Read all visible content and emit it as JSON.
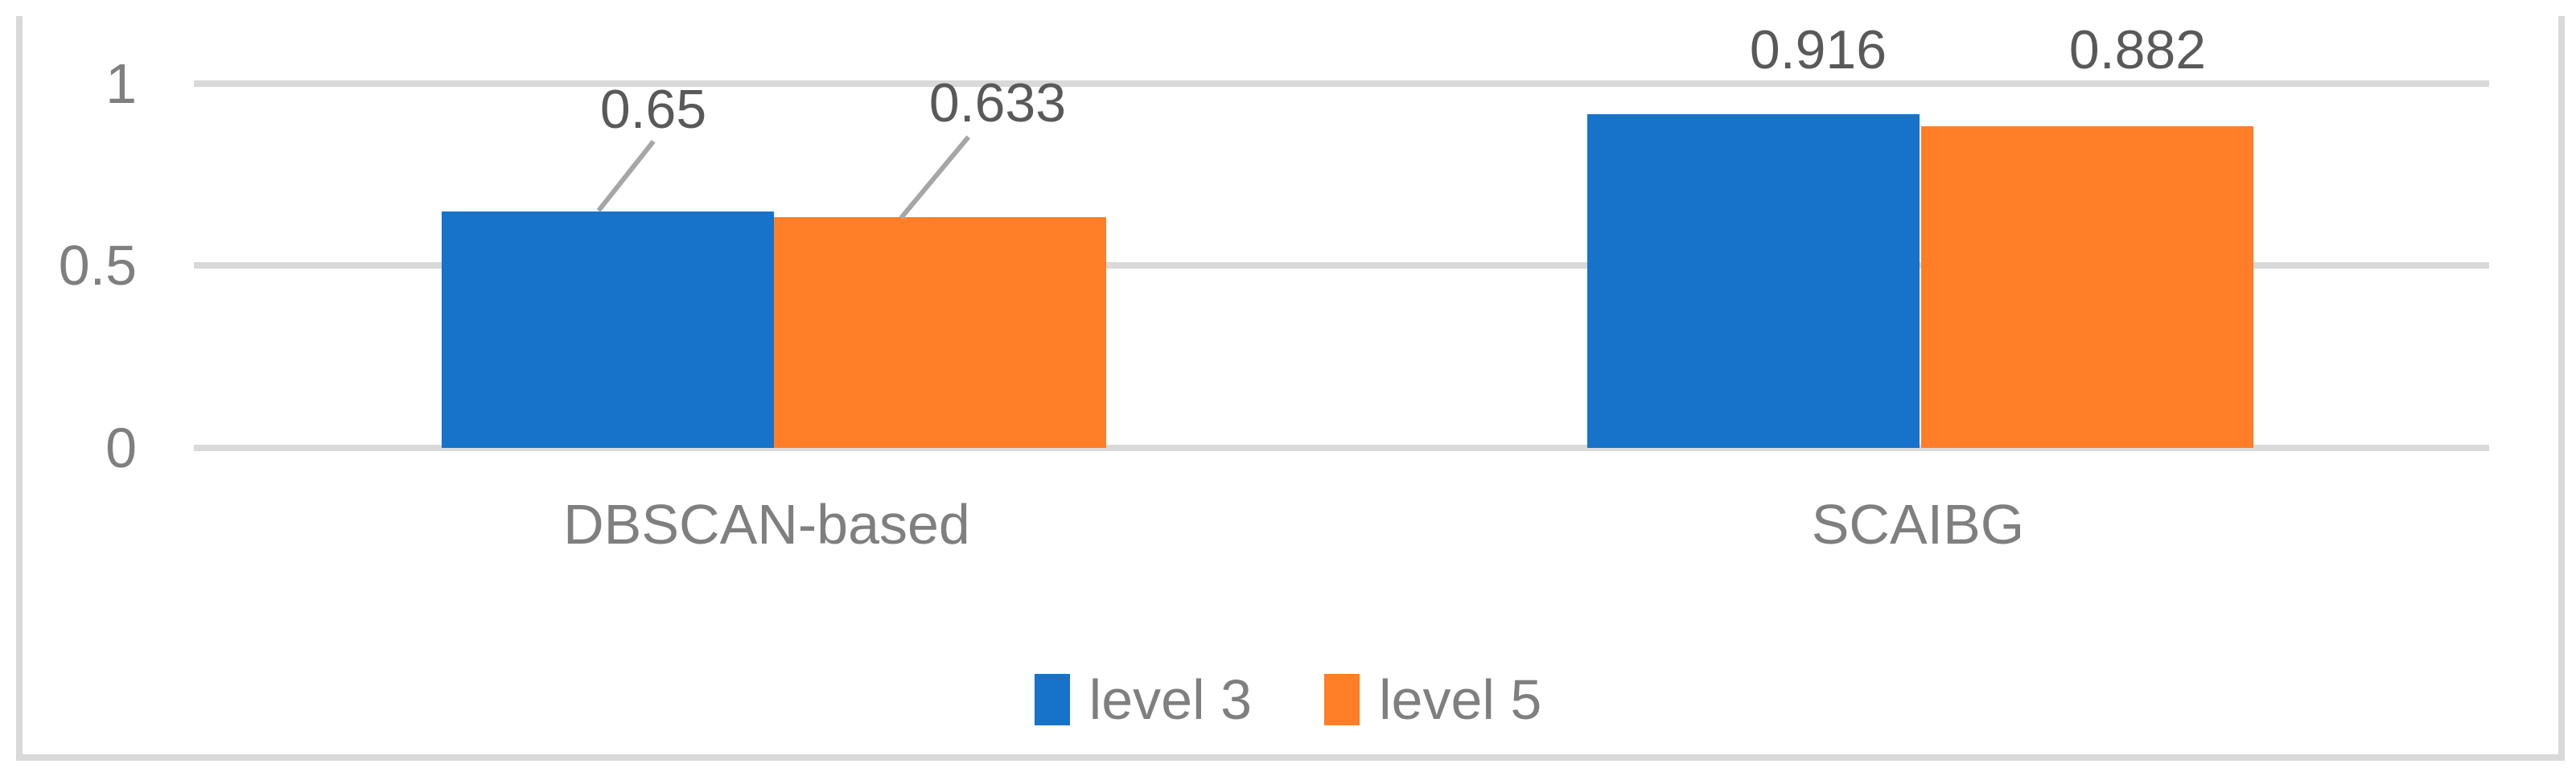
{
  "chart_data": {
    "type": "bar",
    "title": "",
    "categories": [
      "DBSCAN-based",
      "SCAIBG"
    ],
    "series": [
      {
        "name": "level 3",
        "color": "#1773C9",
        "values": [
          0.65,
          0.916
        ]
      },
      {
        "name": "level 5",
        "color": "#FF7E27",
        "values": [
          0.633,
          0.882
        ]
      }
    ],
    "data_labels": {
      "level3_dbscan": "0.65",
      "level5_dbscan": "0.633",
      "level3_scaibg": "0.916",
      "level5_scaibg": "0.882"
    },
    "y_ticks": [
      "1",
      "0.5",
      "0"
    ],
    "ylim": [
      0,
      1
    ],
    "grid": true,
    "gridline_color": "#D9D9D9",
    "frame_color": "#D9D9D9",
    "leader_line_color": "#A6A6A6",
    "axis_text_color": "#7F7F7F",
    "data_label_color": "#595959",
    "legend_position": "bottom"
  }
}
